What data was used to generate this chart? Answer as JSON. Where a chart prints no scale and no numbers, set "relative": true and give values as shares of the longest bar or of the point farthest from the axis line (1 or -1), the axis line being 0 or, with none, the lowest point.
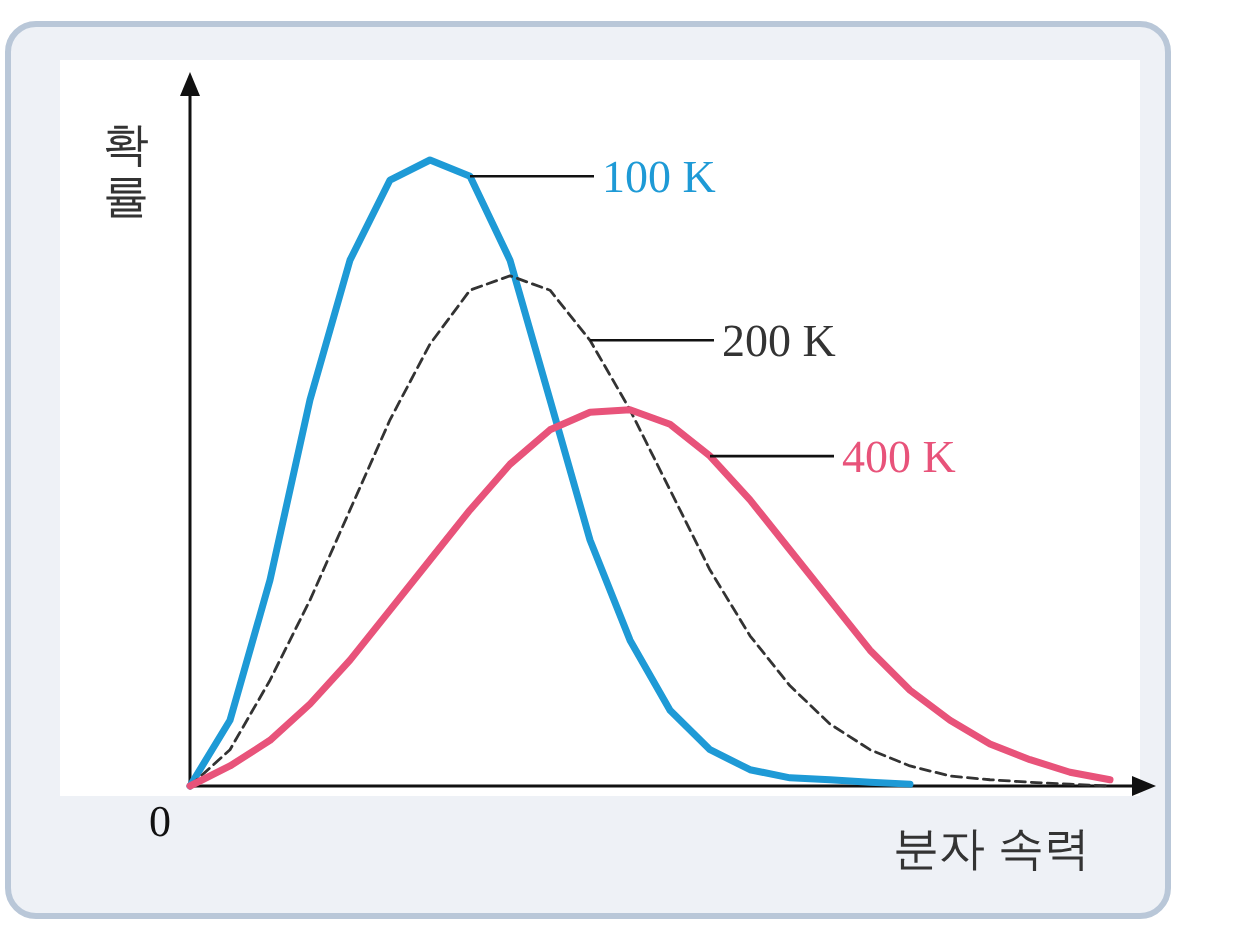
{
  "chart_data": {
    "type": "line",
    "relative": true,
    "xlabel": "분자 속력",
    "ylabel": "확률",
    "annotations": [
      "0"
    ],
    "legend": false,
    "categories": [
      null,
      null,
      null,
      null,
      null,
      null,
      null,
      null,
      null,
      null,
      null,
      null,
      null,
      null,
      null,
      null,
      null,
      null,
      null,
      null,
      null,
      null,
      null,
      null
    ],
    "series": [
      {
        "name": "100 K",
        "color": "#1e9ad6",
        "line_style": "solid",
        "values": [
          0,
          0.105,
          0.329,
          0.617,
          0.84,
          0.968,
          1.0,
          0.974,
          0.84,
          0.617,
          0.393,
          0.233,
          0.121,
          0.058,
          0.026,
          0.013,
          0.01,
          0.006,
          0.003,
          null,
          null,
          null,
          null,
          null
        ]
      },
      {
        "name": "200 K",
        "color": "#333333",
        "line_style": "dashed",
        "values": [
          0,
          0.058,
          0.169,
          0.297,
          0.441,
          0.585,
          0.706,
          0.792,
          0.815,
          0.792,
          0.712,
          0.601,
          0.473,
          0.345,
          0.24,
          0.16,
          0.099,
          0.058,
          0.032,
          0.016,
          0.01,
          0.006,
          0.003,
          0
        ]
      },
      {
        "name": "400 K",
        "color": "#e8537a",
        "line_style": "solid",
        "values": [
          0,
          0.032,
          0.073,
          0.131,
          0.201,
          0.281,
          0.361,
          0.441,
          0.514,
          0.569,
          0.597,
          0.601,
          0.578,
          0.527,
          0.457,
          0.377,
          0.297,
          0.217,
          0.153,
          0.105,
          0.067,
          0.042,
          0.022,
          0.01
        ]
      }
    ]
  }
}
